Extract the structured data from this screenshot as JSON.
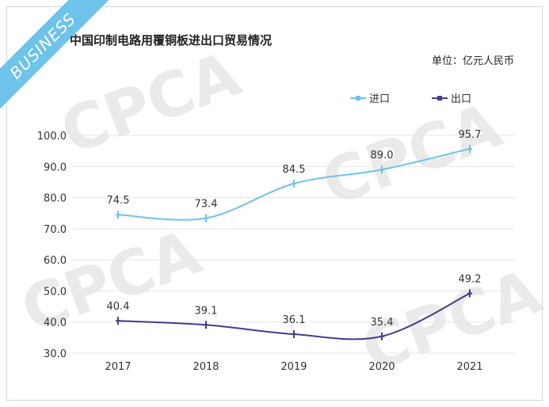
{
  "badge": "BUSINESS",
  "watermark": "CPCA",
  "colors": {
    "import": "#6ec3ea",
    "export": "#3f3f8f",
    "badge": "#6ec3ea",
    "grid": "#e6e6e6"
  },
  "chart_data": {
    "type": "line",
    "title": "中国印制电路用覆铜板进出口贸易情况",
    "unit_label": "单位：亿元人民币",
    "categories": [
      "2017",
      "2018",
      "2019",
      "2020",
      "2021"
    ],
    "series": [
      {
        "name": "进口",
        "values": [
          74.5,
          73.4,
          84.5,
          89.0,
          95.7
        ],
        "labels": [
          "74.5",
          "73.4",
          "84.5",
          "89.0",
          "95.7"
        ]
      },
      {
        "name": "出口",
        "values": [
          40.4,
          39.1,
          36.1,
          35.4,
          49.2
        ],
        "labels": [
          "40.4",
          "39.1",
          "36.1",
          "35.4",
          "49.2"
        ]
      }
    ],
    "ylim": [
      30,
      100
    ],
    "yticks": [
      "30.0",
      "40.0",
      "50.0",
      "60.0",
      "70.0",
      "80.0",
      "90.0",
      "100.0"
    ],
    "grid": true,
    "legend_position": "top-right"
  }
}
